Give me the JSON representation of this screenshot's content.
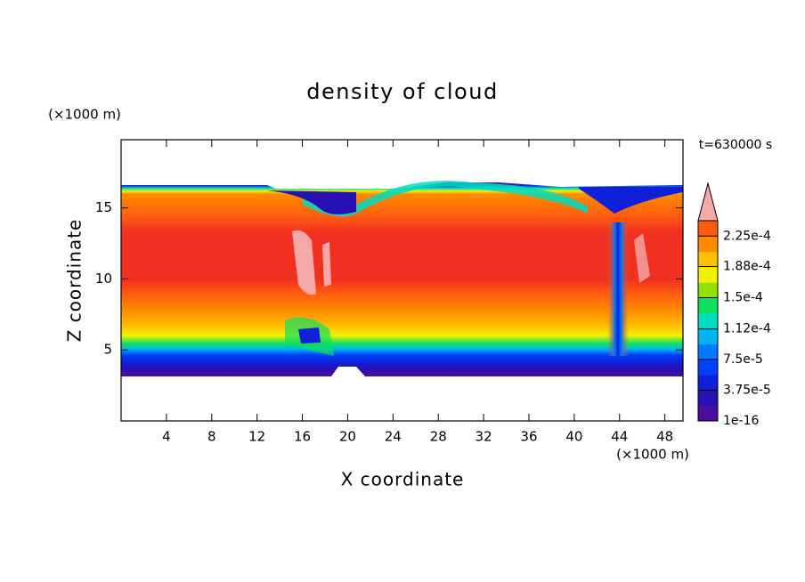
{
  "chart_data": {
    "type": "contour",
    "title": "density of cloud",
    "x_label": "X coordinate",
    "y_label": "Z coordinate",
    "x_unit": "(×1000 m)",
    "y_unit": "(×1000 m)",
    "annotation": "t=630000 s",
    "xlim": [
      0,
      49.6
    ],
    "ylim": [
      0,
      19.8
    ],
    "xticks": [
      4,
      8,
      12,
      16,
      20,
      24,
      28,
      32,
      36,
      40,
      44,
      48
    ],
    "yticks": [
      5,
      10,
      15
    ],
    "colorbar": {
      "clim": [
        1e-16,
        0.00024375
      ],
      "colors": [
        "#4c0c9e",
        "#2810b4",
        "#1020d8",
        "#0040f8",
        "#0078ff",
        "#00b4f0",
        "#00dcc0",
        "#10e060",
        "#90e000",
        "#f0f000",
        "#ffc000",
        "#ff8c00",
        "#ff5a10"
      ],
      "extend_color": "#f4a8a8",
      "ticks": [
        1e-16,
        {
          "value": 3.75e-05,
          "label": "3.75e-5"
        },
        {
          "value": 7.5e-05,
          "label": "7.5e-5"
        },
        {
          "value": 0.000112,
          "label": "1.12e-4"
        },
        {
          "value": 0.00015,
          "label": "1.5e-4"
        },
        {
          "value": 0.000188,
          "label": "1.88e-4"
        },
        {
          "value": 0.000225,
          "label": "2.25e-4"
        }
      ]
    }
  }
}
